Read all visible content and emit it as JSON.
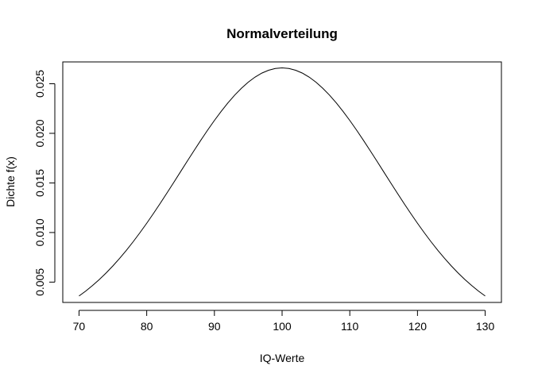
{
  "chart_data": {
    "type": "line",
    "title": "Normalverteilung",
    "xlabel": "IQ-Werte",
    "ylabel": "Dichte f(x)",
    "xlim": [
      67.6,
      132.4
    ],
    "ylim": [
      0.00295,
      0.0272
    ],
    "x_ticks": [
      70,
      80,
      90,
      100,
      110,
      120,
      130
    ],
    "x_tick_labels": [
      "70",
      "80",
      "90",
      "100",
      "110",
      "120",
      "130"
    ],
    "y_ticks": [
      0.005,
      0.01,
      0.015,
      0.02,
      0.025
    ],
    "y_tick_labels": [
      "0.005",
      "0.010",
      "0.015",
      "0.020",
      "0.025"
    ],
    "grid": false,
    "legend": "none",
    "line_color": "#000000",
    "series": [
      {
        "distribution": "normal",
        "mean": 100,
        "sd": 15,
        "x_start": 70,
        "x_end": 130,
        "step": 1
      }
    ]
  }
}
